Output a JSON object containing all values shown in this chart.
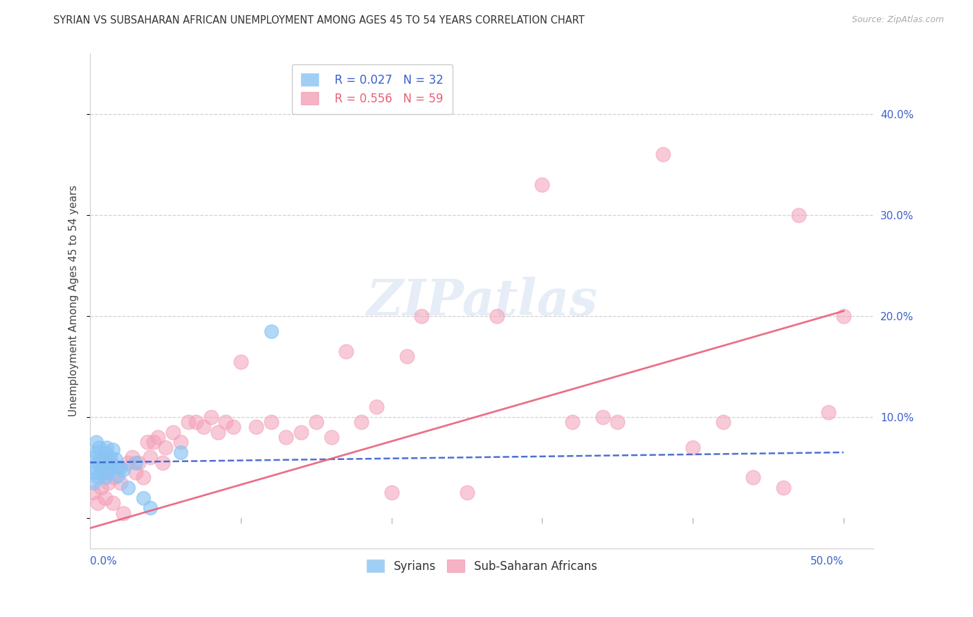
{
  "title": "SYRIAN VS SUBSAHARAN AFRICAN UNEMPLOYMENT AMONG AGES 45 TO 54 YEARS CORRELATION CHART",
  "source": "Source: ZipAtlas.com",
  "ylabel": "Unemployment Among Ages 45 to 54 years",
  "xlim": [
    0.0,
    0.52
  ],
  "ylim": [
    -0.03,
    0.46
  ],
  "xticks": [
    0.0,
    0.1,
    0.2,
    0.3,
    0.4,
    0.5
  ],
  "xticklabels_show": [
    "0.0%",
    "50.0%"
  ],
  "xticklabels_pos": [
    0.0,
    0.5
  ],
  "yticks": [
    0.1,
    0.2,
    0.3,
    0.4
  ],
  "yticklabels": [
    "10.0%",
    "20.0%",
    "30.0%",
    "40.0%"
  ],
  "background_color": "#ffffff",
  "grid_color": "#cccccc",
  "syrian_color": "#89c4f4",
  "subsaharan_color": "#f4a0b8",
  "syrian_trend_color": "#3a5fcd",
  "subsaharan_trend_color": "#e8607a",
  "syrian_R": 0.027,
  "syrian_N": 32,
  "subsaharan_R": 0.556,
  "subsaharan_N": 59,
  "syrian_x": [
    0.001,
    0.002,
    0.003,
    0.003,
    0.004,
    0.004,
    0.005,
    0.005,
    0.006,
    0.007,
    0.007,
    0.008,
    0.009,
    0.01,
    0.01,
    0.011,
    0.011,
    0.012,
    0.013,
    0.014,
    0.015,
    0.016,
    0.017,
    0.018,
    0.02,
    0.022,
    0.025,
    0.03,
    0.035,
    0.04,
    0.06,
    0.12
  ],
  "syrian_y": [
    0.05,
    0.035,
    0.06,
    0.045,
    0.065,
    0.075,
    0.055,
    0.04,
    0.07,
    0.06,
    0.045,
    0.055,
    0.05,
    0.065,
    0.04,
    0.055,
    0.07,
    0.045,
    0.06,
    0.05,
    0.068,
    0.052,
    0.058,
    0.042,
    0.05,
    0.048,
    0.03,
    0.055,
    0.02,
    0.01,
    0.065,
    0.185
  ],
  "subsaharan_x": [
    0.002,
    0.005,
    0.007,
    0.009,
    0.01,
    0.012,
    0.013,
    0.015,
    0.016,
    0.018,
    0.02,
    0.022,
    0.025,
    0.028,
    0.03,
    0.032,
    0.035,
    0.038,
    0.04,
    0.042,
    0.045,
    0.048,
    0.05,
    0.055,
    0.06,
    0.065,
    0.07,
    0.075,
    0.08,
    0.085,
    0.09,
    0.095,
    0.1,
    0.11,
    0.12,
    0.13,
    0.14,
    0.15,
    0.16,
    0.17,
    0.18,
    0.19,
    0.2,
    0.21,
    0.22,
    0.25,
    0.27,
    0.3,
    0.32,
    0.34,
    0.35,
    0.38,
    0.4,
    0.42,
    0.44,
    0.46,
    0.47,
    0.49,
    0.5
  ],
  "subsaharan_y": [
    0.025,
    0.015,
    0.03,
    0.045,
    0.02,
    0.035,
    0.055,
    0.015,
    0.04,
    0.05,
    0.035,
    0.005,
    0.055,
    0.06,
    0.045,
    0.055,
    0.04,
    0.075,
    0.06,
    0.075,
    0.08,
    0.055,
    0.07,
    0.085,
    0.075,
    0.095,
    0.095,
    0.09,
    0.1,
    0.085,
    0.095,
    0.09,
    0.155,
    0.09,
    0.095,
    0.08,
    0.085,
    0.095,
    0.08,
    0.165,
    0.095,
    0.11,
    0.025,
    0.16,
    0.2,
    0.025,
    0.2,
    0.33,
    0.095,
    0.1,
    0.095,
    0.36,
    0.07,
    0.095,
    0.04,
    0.03,
    0.3,
    0.105,
    0.2
  ],
  "syrian_trend_x": [
    0.0,
    0.5
  ],
  "syrian_trend_y": [
    0.055,
    0.065
  ],
  "subsaharan_trend_x": [
    0.0,
    0.5
  ],
  "subsaharan_trend_y": [
    -0.01,
    0.205
  ]
}
